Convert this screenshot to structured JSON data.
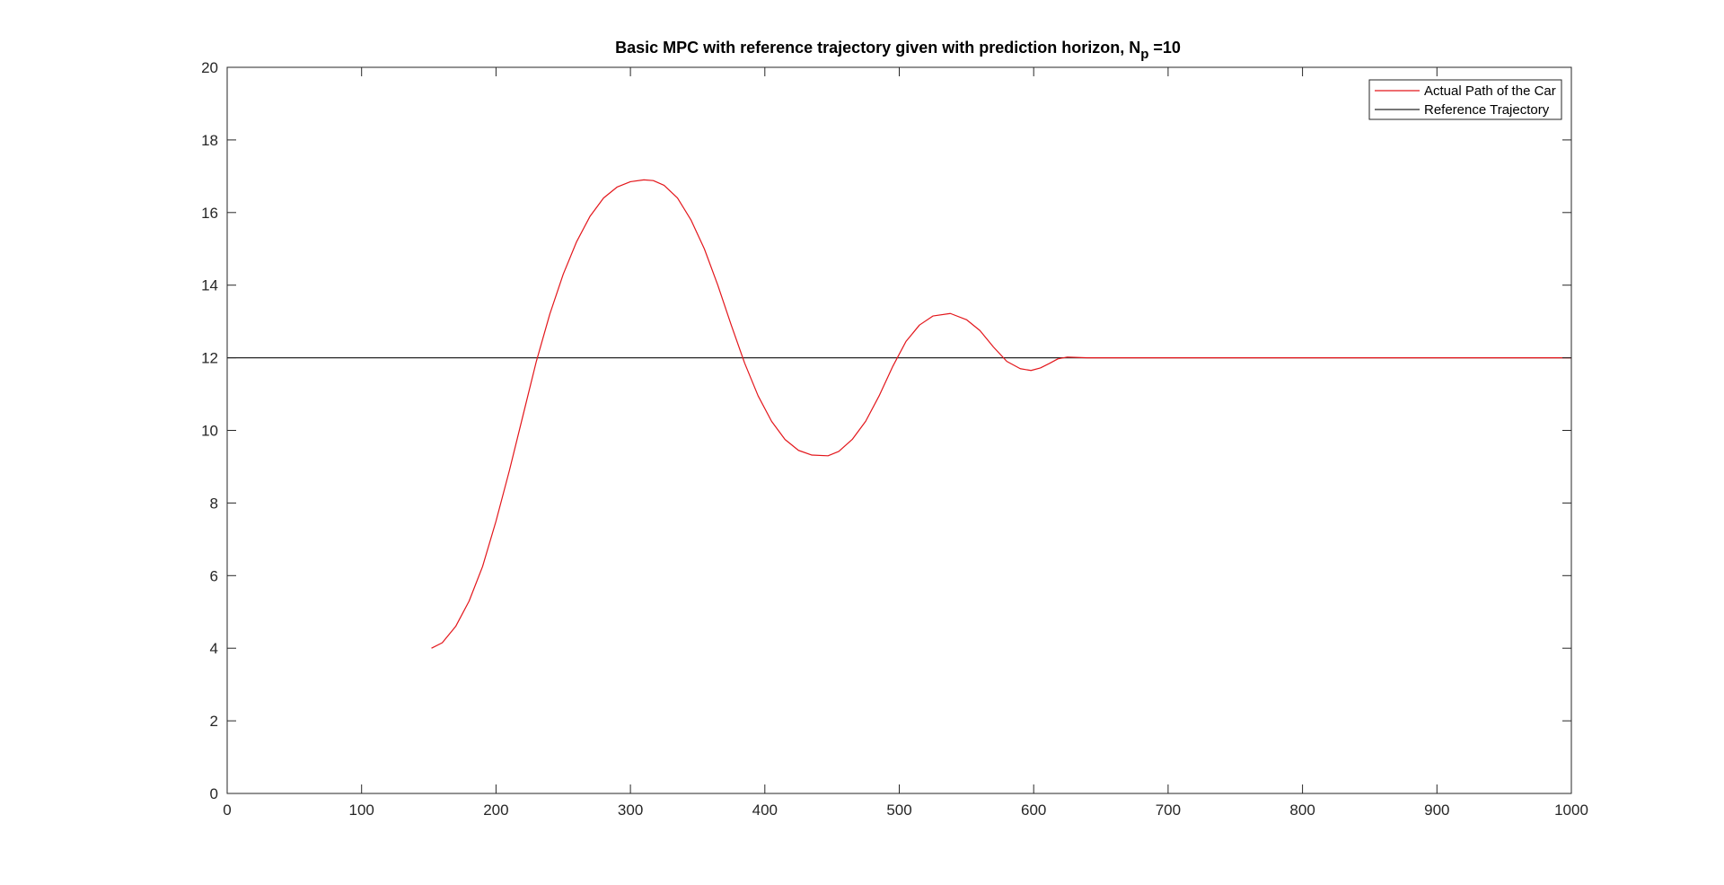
{
  "colors": {
    "actual_path": "#e3161b",
    "reference": "#262626",
    "axes": "#262626",
    "background": "#ffffff"
  },
  "chart_data": {
    "type": "line",
    "title": "Basic MPC with reference trajectory given with prediction horizon, N",
    "title_subscript": "p",
    "title_suffix": " =10",
    "xlabel": "",
    "ylabel": "",
    "xlim": [
      0,
      1000
    ],
    "ylim": [
      0,
      20
    ],
    "xticks": [
      0,
      100,
      200,
      300,
      400,
      500,
      600,
      700,
      800,
      900,
      1000
    ],
    "yticks": [
      0,
      2,
      4,
      6,
      8,
      10,
      12,
      14,
      16,
      18,
      20
    ],
    "grid": false,
    "legend_position": "top-right",
    "series": [
      {
        "name": "Actual Path of the Car",
        "color": "#e3161b",
        "x": [
          152,
          160,
          170,
          180,
          190,
          200,
          210,
          220,
          230,
          240,
          250,
          260,
          270,
          280,
          290,
          300,
          310,
          317,
          325,
          335,
          345,
          355,
          365,
          375,
          385,
          395,
          405,
          415,
          425,
          435,
          447,
          455,
          465,
          475,
          485,
          495,
          505,
          515,
          525,
          538,
          550,
          560,
          570,
          580,
          590,
          598,
          605,
          612,
          618,
          625,
          640,
          700,
          800,
          900,
          1000
        ],
        "y": [
          4.0,
          4.15,
          4.6,
          5.3,
          6.25,
          7.5,
          8.9,
          10.4,
          11.9,
          13.2,
          14.3,
          15.2,
          15.9,
          16.4,
          16.7,
          16.85,
          16.9,
          16.88,
          16.75,
          16.4,
          15.8,
          15.0,
          14.0,
          12.9,
          11.85,
          10.95,
          10.25,
          9.75,
          9.45,
          9.32,
          9.3,
          9.42,
          9.75,
          10.25,
          10.95,
          11.75,
          12.45,
          12.9,
          13.15,
          13.22,
          13.05,
          12.75,
          12.3,
          11.9,
          11.7,
          11.65,
          11.72,
          11.85,
          11.97,
          12.02,
          12.0,
          12.0,
          12.0,
          12.0,
          12.0
        ]
      },
      {
        "name": "Reference Trajectory",
        "color": "#262626",
        "x": [
          0,
          1000
        ],
        "y": [
          12,
          12
        ]
      }
    ]
  }
}
